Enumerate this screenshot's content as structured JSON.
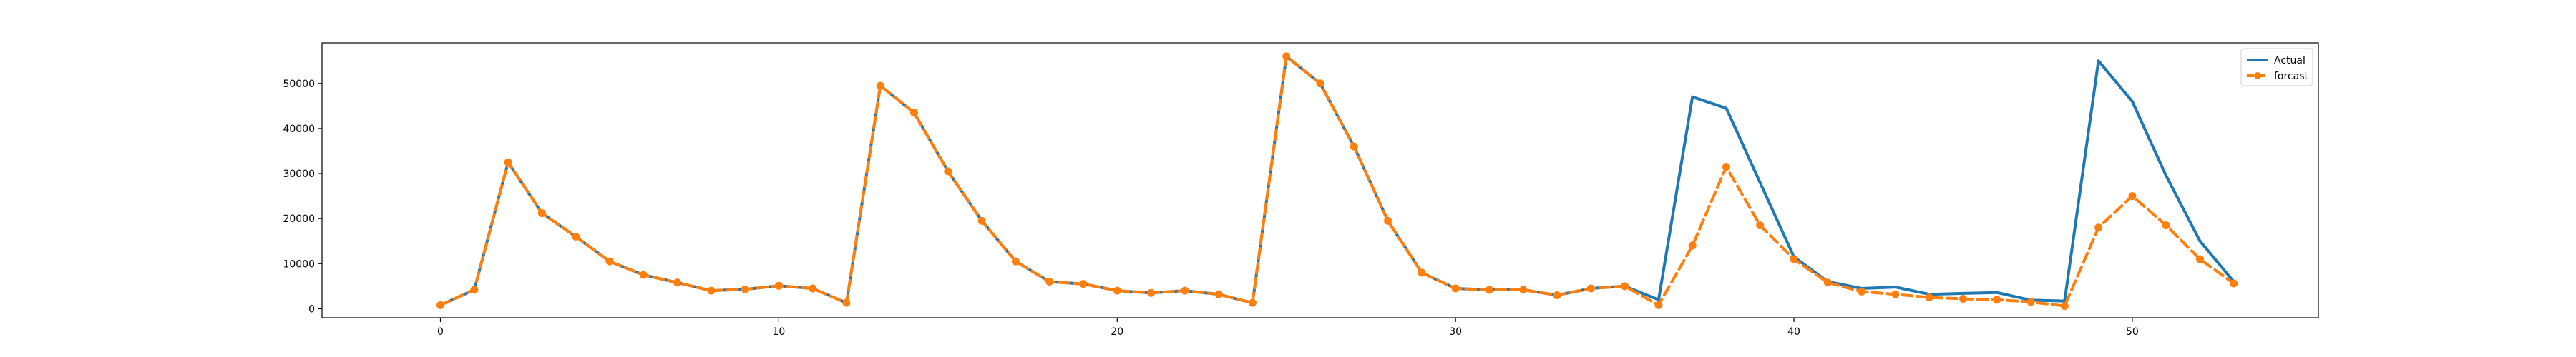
{
  "chart_data": {
    "type": "line",
    "xlim": [
      -3.5,
      55.5
    ],
    "ylim": [
      -2000,
      59000
    ],
    "xticks": [
      0,
      10,
      20,
      30,
      40,
      50
    ],
    "yticks": [
      0,
      10000,
      20000,
      30000,
      40000,
      50000
    ],
    "grid": false,
    "legend": "top-right",
    "series": [
      {
        "name": "Actual",
        "color": "#1f77b4",
        "style": "solid",
        "x": [
          0,
          1,
          2,
          3,
          4,
          5,
          6,
          7,
          8,
          9,
          10,
          11,
          12,
          13,
          14,
          15,
          16,
          17,
          18,
          19,
          20,
          21,
          22,
          23,
          24,
          25,
          26,
          27,
          28,
          29,
          30,
          31,
          32,
          33,
          34,
          35,
          36,
          37,
          38,
          39,
          40,
          41,
          42,
          43,
          44,
          45,
          46,
          47,
          48,
          49,
          50,
          51,
          52,
          53
        ],
        "values": [
          800,
          4200,
          32500,
          21200,
          16000,
          10500,
          7500,
          5800,
          4000,
          4300,
          5100,
          4500,
          1300,
          49500,
          43500,
          30500,
          19500,
          10500,
          6000,
          5500,
          4000,
          3500,
          4000,
          3200,
          1300,
          56000,
          50000,
          36000,
          19500,
          8000,
          4500,
          4200,
          4200,
          3000,
          4500,
          5000,
          2000,
          47000,
          44500,
          28000,
          11500,
          6000,
          4500,
          4800,
          3200,
          3400,
          3600,
          1900,
          1700,
          55000,
          46000,
          29500,
          15000,
          6000
        ]
      },
      {
        "name": "forcast",
        "color": "#ff7f0e",
        "style": "dashed",
        "marker": "circle",
        "x": [
          0,
          1,
          2,
          3,
          4,
          5,
          6,
          7,
          8,
          9,
          10,
          11,
          12,
          13,
          14,
          15,
          16,
          17,
          18,
          19,
          20,
          21,
          22,
          23,
          24,
          25,
          26,
          27,
          28,
          29,
          30,
          31,
          32,
          33,
          34,
          35,
          36,
          37,
          38,
          39,
          40,
          41,
          42,
          43,
          44,
          45,
          46,
          47,
          48,
          49,
          50,
          51,
          52,
          53
        ],
        "values": [
          800,
          4200,
          32500,
          21200,
          16000,
          10500,
          7500,
          5800,
          4000,
          4300,
          5100,
          4500,
          1300,
          49500,
          43500,
          30500,
          19500,
          10500,
          6000,
          5500,
          4000,
          3500,
          4000,
          3200,
          1300,
          56000,
          50000,
          36000,
          19500,
          8000,
          4500,
          4200,
          4200,
          3000,
          4500,
          5000,
          800,
          14000,
          31500,
          18500,
          11000,
          5800,
          3800,
          3200,
          2500,
          2200,
          2000,
          1500,
          600,
          18000,
          25000,
          18500,
          11000,
          5600
        ]
      }
    ]
  }
}
